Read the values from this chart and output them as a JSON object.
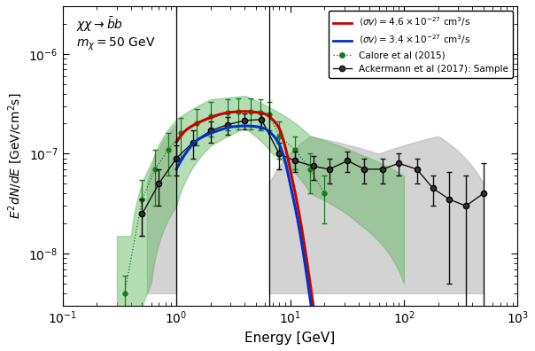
{
  "xlabel": "Energy [GeV]",
  "ylabel": "$E^2 dN/dE$ [GeV/cm$^2$s]",
  "xlim": [
    0.1,
    1000
  ],
  "ylim": [
    3e-09,
    3e-06
  ],
  "vlines": [
    1.0,
    6.5
  ],
  "red_label": "$\\langle\\sigma v\\rangle = 4.6\\times10^{-27}$ cm$^3$/s",
  "blue_label": "$\\langle\\sigma v\\rangle = 3.4\\times10^{-27}$ cm$^3$/s",
  "calore_label": "Calore et al (2015)",
  "ackermann_label": "Ackermann et al (2017): Sample",
  "red_color": "#cc0000",
  "blue_color": "#0033cc",
  "green_color": "#1a7a1a",
  "black_color": "#111111",
  "gray_band_color": "#b0b0b0",
  "green_band_color": "#5ab55a",
  "annotation_line1": "$\\chi\\chi \\rightarrow \\bar{b}b$",
  "annotation_line2": "$m_\\chi = 50$ GeV",
  "E_red": [
    1.0,
    1.2,
    1.5,
    2.0,
    2.5,
    3.0,
    4.0,
    5.0,
    6.0,
    7.0,
    8.0,
    9.0,
    10.0,
    12.0,
    15.0,
    20.0,
    25.0
  ],
  "y_red": [
    1.3e-07,
    1.7e-07,
    2e-07,
    2.3e-07,
    2.5e-07,
    2.6e-07,
    2.65e-07,
    2.6e-07,
    2.5e-07,
    2.2e-07,
    1.8e-07,
    1.2e-07,
    7e-08,
    2.5e-08,
    5e-09,
    4e-10,
    3e-11
  ],
  "E_blue": [
    1.0,
    1.2,
    1.5,
    2.0,
    2.5,
    3.0,
    4.0,
    5.0,
    6.0,
    7.0,
    8.0,
    9.0,
    10.0,
    12.0,
    15.0,
    20.0,
    25.0
  ],
  "y_blue": [
    7e-08,
    1e-07,
    1.35e-07,
    1.6e-07,
    1.75e-07,
    1.85e-07,
    1.9e-07,
    1.87e-07,
    1.78e-07,
    1.55e-07,
    1.25e-07,
    8.5e-08,
    5e-08,
    1.8e-08,
    3.5e-09,
    3e-10,
    2e-11
  ],
  "E_calore": [
    0.35,
    0.5,
    0.65,
    0.85,
    1.1,
    1.5,
    2.0,
    2.8,
    3.5,
    4.5,
    5.5,
    6.5,
    8.0,
    11.0,
    15.0,
    20.0
  ],
  "y_calore": [
    4e-09,
    3.5e-08,
    7e-08,
    1.1e-07,
    1.6e-07,
    2e-07,
    2.4e-07,
    2.6e-07,
    2.65e-07,
    2.65e-07,
    2.6e-07,
    2.5e-07,
    1.5e-07,
    1.1e-07,
    7e-08,
    4e-08
  ],
  "yerr_calore_lo": [
    2e-09,
    2e-08,
    4e-08,
    5e-08,
    7e-08,
    8e-08,
    9e-08,
    9e-08,
    9e-08,
    9e-08,
    9e-08,
    8e-08,
    6e-08,
    4e-08,
    3e-08,
    2e-08
  ],
  "yerr_calore_hi": [
    2e-09,
    2e-08,
    4e-08,
    5e-08,
    7e-08,
    8e-08,
    9e-08,
    9e-08,
    9e-08,
    9e-08,
    9e-08,
    8e-08,
    6e-08,
    4e-08,
    3e-08,
    2e-08
  ],
  "E_ack": [
    0.5,
    0.7,
    1.0,
    1.4,
    2.0,
    2.8,
    4.0,
    5.6,
    8.0,
    11,
    16,
    22,
    32,
    45,
    65,
    90,
    130,
    180,
    250,
    350,
    500
  ],
  "y_ack": [
    2.5e-08,
    5e-08,
    9e-08,
    1.3e-07,
    1.7e-07,
    1.95e-07,
    2.15e-07,
    2.2e-07,
    1e-07,
    8.5e-08,
    7.5e-08,
    7e-08,
    8.5e-08,
    7e-08,
    7e-08,
    8e-08,
    7e-08,
    4.5e-08,
    3.5e-08,
    3e-08,
    4e-08
  ],
  "yerr_ack_lo": [
    1e-08,
    2e-08,
    3e-08,
    4e-08,
    4e-08,
    4e-08,
    4e-08,
    4e-08,
    3e-08,
    2e-08,
    2e-08,
    2e-08,
    2e-08,
    2e-08,
    2e-08,
    2e-08,
    2e-08,
    1.5e-08,
    3e-08,
    3e-08,
    4e-08
  ],
  "yerr_ack_hi": [
    1e-08,
    2e-08,
    3e-08,
    4e-08,
    4e-08,
    4e-08,
    4e-08,
    4e-08,
    3e-08,
    2e-08,
    2e-08,
    2e-08,
    2e-08,
    2e-08,
    2e-08,
    2e-08,
    2e-08,
    1.5e-08,
    3e-08,
    3e-08,
    4e-08
  ]
}
